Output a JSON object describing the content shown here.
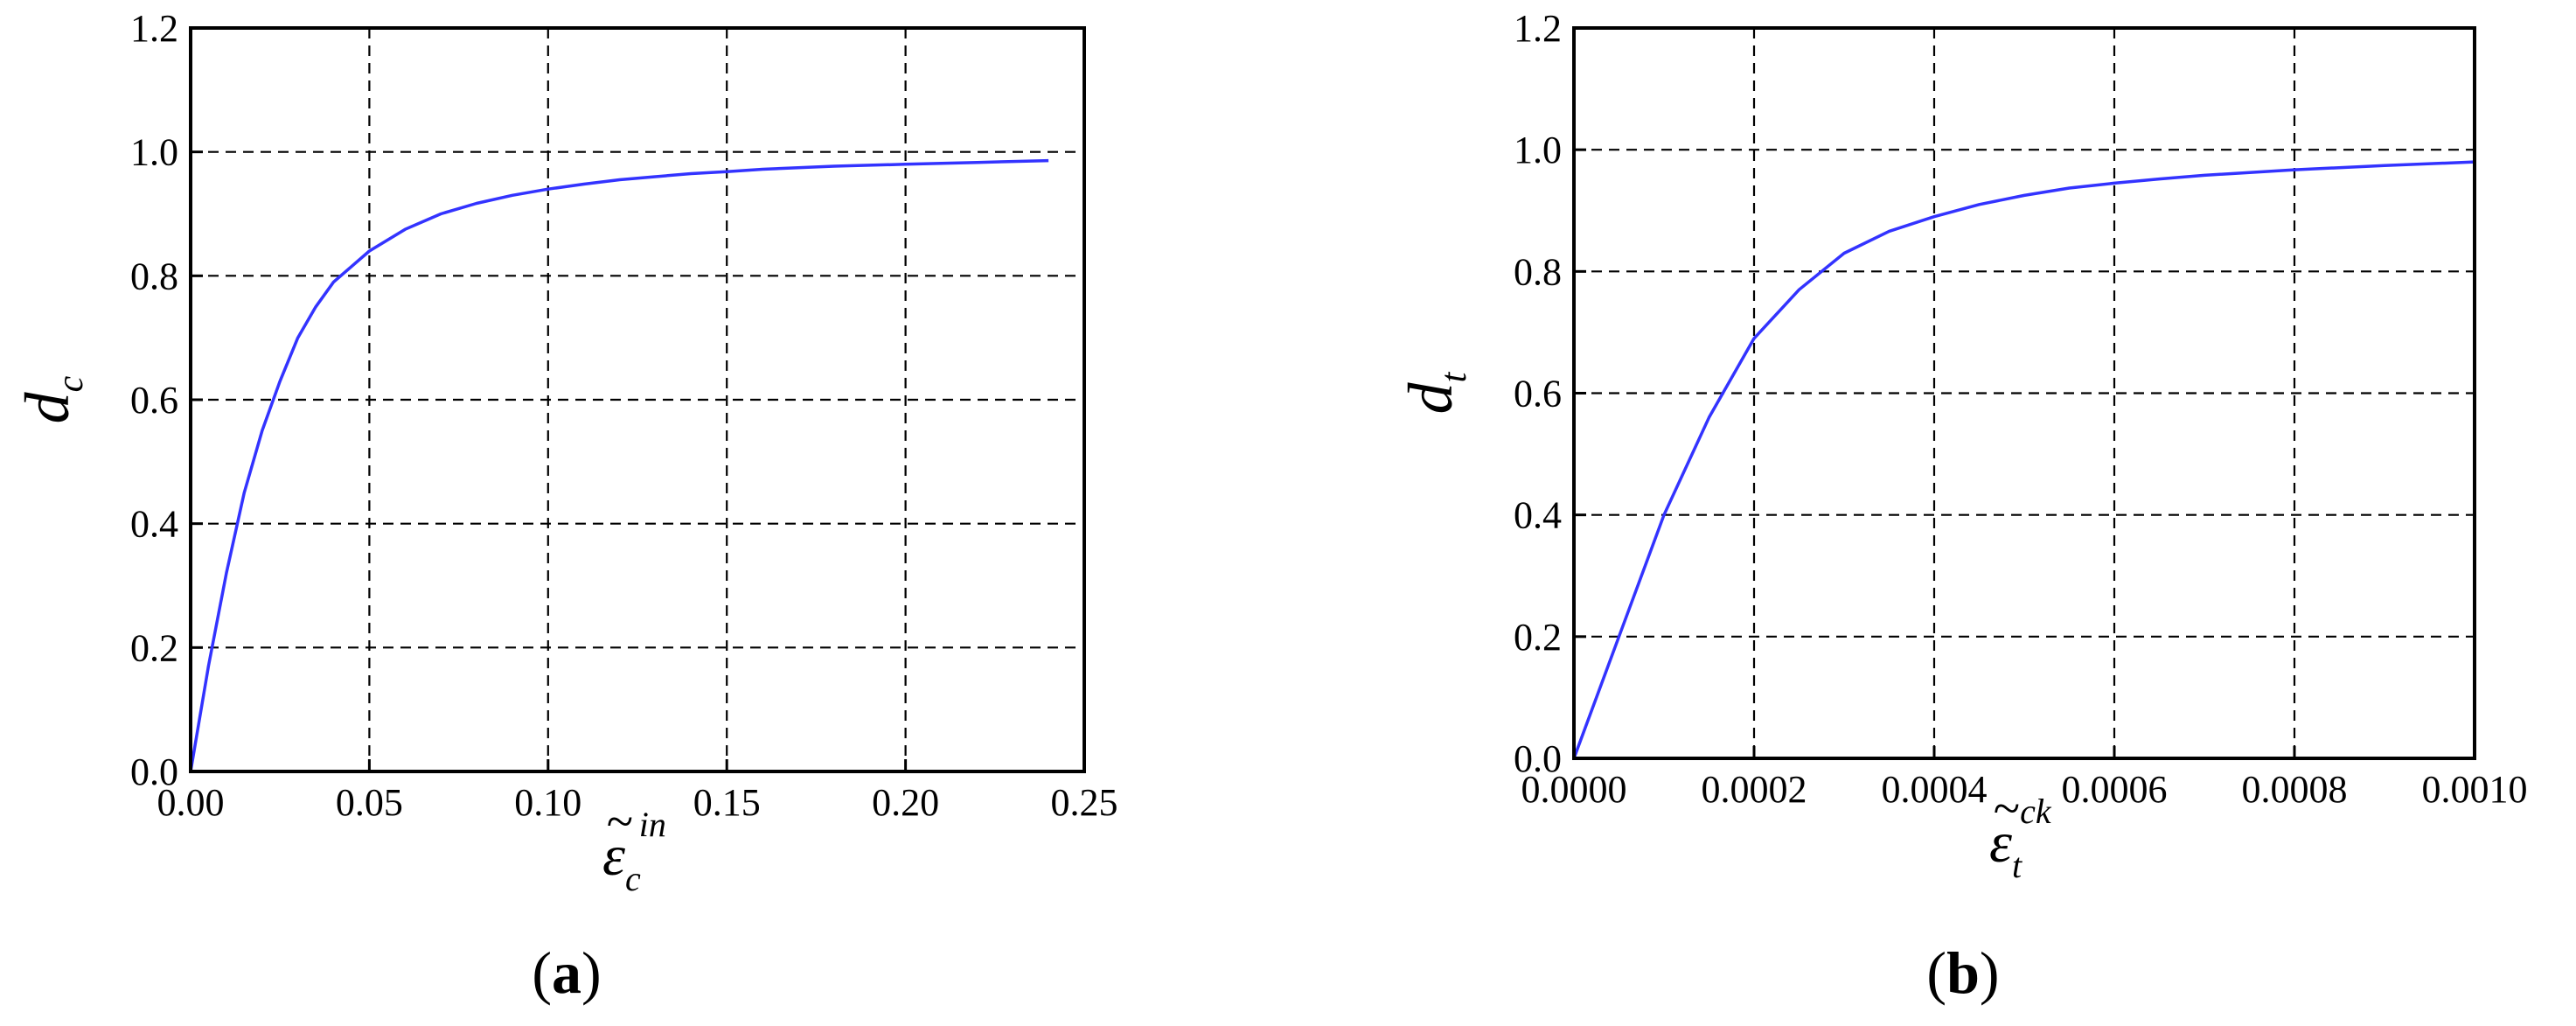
{
  "chart_data": [
    {
      "type": "line",
      "panel_label": "a",
      "xlabel": {
        "base": "ε",
        "sub": "c",
        "sup": "in",
        "accent": "~"
      },
      "ylabel": {
        "base": "d",
        "sub": "c"
      },
      "xlim": [
        0,
        0.25
      ],
      "ylim": [
        0,
        1.2
      ],
      "xticks": [
        "0.00",
        "0.05",
        "0.10",
        "0.15",
        "0.20",
        "0.25"
      ],
      "yticks": [
        "0.0",
        "0.2",
        "0.4",
        "0.6",
        "0.8",
        "1.0",
        "1.2"
      ],
      "grid": true,
      "line_color": "#3333ff",
      "series": [
        {
          "x": [
            0.0,
            0.005,
            0.01,
            0.015,
            0.02,
            0.025,
            0.03,
            0.035,
            0.04,
            0.045,
            0.05,
            0.06,
            0.07,
            0.08,
            0.09,
            0.1,
            0.11,
            0.12,
            0.13,
            0.14,
            0.15,
            0.16,
            0.18,
            0.2,
            0.22,
            0.24
          ],
          "y": [
            0.0,
            0.17,
            0.32,
            0.45,
            0.55,
            0.63,
            0.7,
            0.75,
            0.79,
            0.815,
            0.84,
            0.875,
            0.9,
            0.917,
            0.93,
            0.94,
            0.948,
            0.955,
            0.96,
            0.965,
            0.968,
            0.972,
            0.977,
            0.98,
            0.983,
            0.986
          ]
        }
      ]
    },
    {
      "type": "line",
      "panel_label": "b",
      "xlabel": {
        "base": "ε",
        "sub": "t",
        "sup": "ck",
        "accent": "~"
      },
      "ylabel": {
        "base": "d",
        "sub": "t"
      },
      "xlim": [
        0,
        0.001
      ],
      "ylim": [
        0,
        1.2
      ],
      "xticks": [
        "0.0000",
        "0.0002",
        "0.0004",
        "0.0006",
        "0.0008",
        "0.0010"
      ],
      "yticks": [
        "0.0",
        "0.2",
        "0.4",
        "0.6",
        "0.8",
        "1.0",
        "1.2"
      ],
      "grid": true,
      "line_color": "#3333ff",
      "series": [
        {
          "x": [
            0.0,
            5e-05,
            0.0001,
            0.00015,
            0.0002,
            0.00025,
            0.0003,
            0.00035,
            0.0004,
            0.00045,
            0.0005,
            0.00055,
            0.0006,
            0.00065,
            0.0007,
            0.0008,
            0.0009,
            0.001
          ],
          "y": [
            0.0,
            0.2,
            0.4,
            0.56,
            0.69,
            0.77,
            0.83,
            0.866,
            0.89,
            0.91,
            0.925,
            0.937,
            0.945,
            0.952,
            0.958,
            0.967,
            0.974,
            0.98
          ]
        }
      ]
    }
  ]
}
